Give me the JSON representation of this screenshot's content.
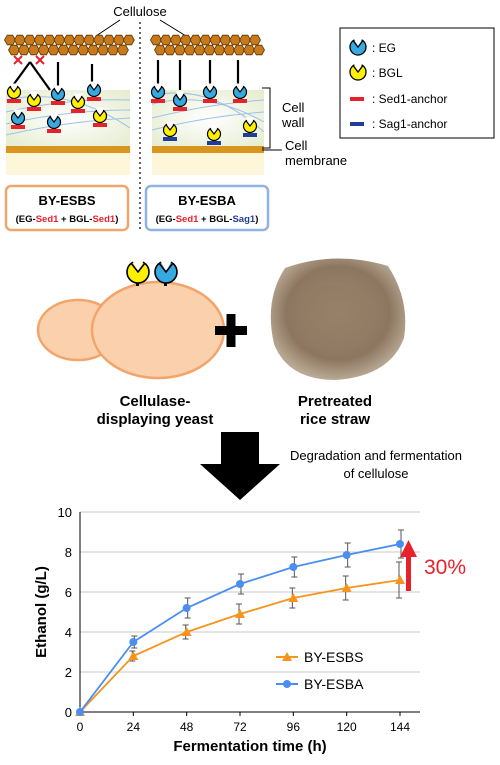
{
  "top": {
    "cellulose_label": "Cellulose",
    "cell_wall_label": [
      "Cell",
      "wall"
    ],
    "cell_membrane_label": [
      "Cell",
      "membrane"
    ],
    "legend": [
      {
        "symbol": "eg-icon",
        "label": ": EG"
      },
      {
        "symbol": "bgl-icon",
        "label": ": BGL"
      },
      {
        "symbol": "sed1-anchor",
        "label": ": Sed1-anchor",
        "color": "#e8222a"
      },
      {
        "symbol": "sag1-anchor",
        "label": ": Sag1-anchor",
        "color": "#1f3d99"
      }
    ],
    "strains": [
      {
        "name": "BY-ESBS",
        "detail_parts": [
          "(EG-",
          "Sed1",
          " + BGL-",
          "Sed1",
          ")"
        ],
        "border": "#f2a56b"
      },
      {
        "name": "BY-ESBA",
        "detail_parts": [
          "(EG-",
          "Sed1",
          " + BGL-",
          "Sag1",
          ")"
        ],
        "border": "#8fb4e3"
      }
    ]
  },
  "middle": {
    "yeast_label": [
      "Cellulase-",
      "displaying yeast"
    ],
    "plus": "+",
    "straw_label": [
      "Pretreated",
      "rice straw"
    ],
    "arrow_label": [
      "Degradation and fermentation",
      "of cellulose"
    ]
  },
  "chart_data": {
    "type": "line",
    "xlabel": "Fermentation time (h)",
    "ylabel": "Ethanol (g/L)",
    "x": [
      0,
      24,
      48,
      72,
      96,
      120,
      144
    ],
    "xlim": [
      0,
      144
    ],
    "ylim": [
      0,
      10
    ],
    "yticks": [
      0,
      2,
      4,
      6,
      8,
      10
    ],
    "grid": true,
    "legend_position": "bottom-right",
    "series": [
      {
        "name": "BY-ESBS",
        "color": "#f7941d",
        "marker": "triangle",
        "values": [
          0,
          2.8,
          4.0,
          4.9,
          5.7,
          6.2,
          6.6
        ],
        "errors": [
          0,
          0.25,
          0.35,
          0.5,
          0.5,
          0.6,
          0.9
        ]
      },
      {
        "name": "BY-ESBA",
        "color": "#4a8ff0",
        "marker": "circle",
        "values": [
          0,
          3.5,
          5.2,
          6.4,
          7.25,
          7.85,
          8.4
        ],
        "errors": [
          0,
          0.3,
          0.5,
          0.5,
          0.5,
          0.6,
          0.7
        ]
      }
    ],
    "annotation": {
      "text": "30%",
      "color": "#e8222a"
    }
  }
}
